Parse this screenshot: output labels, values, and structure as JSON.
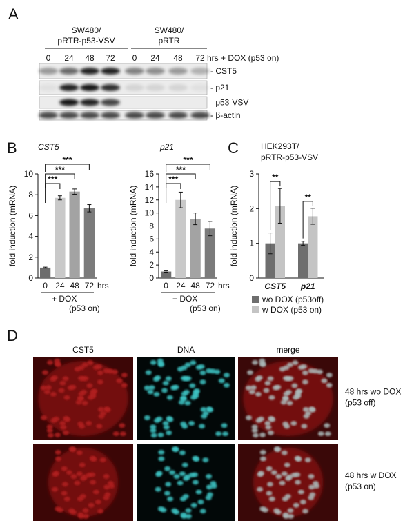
{
  "panel_labels": [
    "A",
    "B",
    "C",
    "D"
  ],
  "panel_a": {
    "groups": [
      [
        "SW480/",
        "pRTR-p53-VSV"
      ],
      [
        "SW480/",
        "pRTR"
      ]
    ],
    "lanes": [
      "0",
      "24",
      "48",
      "72",
      "0",
      "24",
      "48",
      "72"
    ],
    "lane_unit": "hrs + DOX (p53 on)",
    "blots": [
      "- CST5",
      "- p21",
      "- p53-VSV",
      "- β-actin"
    ]
  },
  "chart_data": [
    {
      "type": "bar",
      "title": "CST5",
      "y_label": "fold induction (mRNA)",
      "categories": [
        "0",
        "24",
        "48",
        "72"
      ],
      "x_unit": "hrs",
      "x_group_label": "+ DOX",
      "x_group_note": "(p53 on)",
      "values": [
        1,
        7.7,
        8.3,
        6.7
      ],
      "errors": [
        0.05,
        0.2,
        0.25,
        0.35
      ],
      "colors": [
        "#6e6e6e",
        "#c9c9c9",
        "#a3a3a3",
        "#7b7b7b"
      ],
      "ylim": [
        0,
        10
      ],
      "yticks": [
        0,
        2,
        4,
        6,
        8,
        10
      ],
      "annotations": [
        "***",
        "***",
        "***"
      ]
    },
    {
      "type": "bar",
      "title": "p21",
      "y_label": "fold induction (mRNA)",
      "categories": [
        "0",
        "24",
        "48",
        "72"
      ],
      "x_unit": "hrs",
      "x_group_label": "+ DOX",
      "x_group_note": "(p53 on)",
      "values": [
        1,
        12,
        9.1,
        7.6
      ],
      "errors": [
        0.1,
        1.2,
        0.9,
        1.1
      ],
      "colors": [
        "#6e6e6e",
        "#c9c9c9",
        "#a3a3a3",
        "#7b7b7b"
      ],
      "ylim": [
        0,
        16
      ],
      "yticks": [
        0,
        2,
        4,
        6,
        8,
        10,
        12,
        14,
        16
      ],
      "annotations": [
        "***",
        "***",
        "***"
      ]
    },
    {
      "type": "grouped_bar",
      "title": "HEK293T/",
      "subtitle": "pRTR-p53-VSV",
      "y_label": "fold induction (mRNA)",
      "categories": [
        "CST5",
        "p21"
      ],
      "series": [
        {
          "name": "wo DOX (p53off)",
          "color": "#6e6e6e",
          "values": [
            1.0,
            1.0
          ],
          "errors": [
            0.3,
            0.06
          ]
        },
        {
          "name": "w DOX (p53 on)",
          "color": "#c4c4c4",
          "values": [
            2.08,
            1.78
          ],
          "errors": [
            0.5,
            0.23
          ]
        }
      ],
      "ylim": [
        0,
        3
      ],
      "yticks": [
        0,
        1,
        2,
        3
      ],
      "annotations": [
        "**",
        "**"
      ],
      "legend": "bottom"
    }
  ],
  "panel_d": {
    "columns": [
      "CST5",
      "DNA",
      "merge"
    ],
    "rows": [
      [
        "48 hrs wo DOX",
        "(p53 off)"
      ],
      [
        "48 hrs w DOX",
        "(p53 on)"
      ]
    ]
  }
}
